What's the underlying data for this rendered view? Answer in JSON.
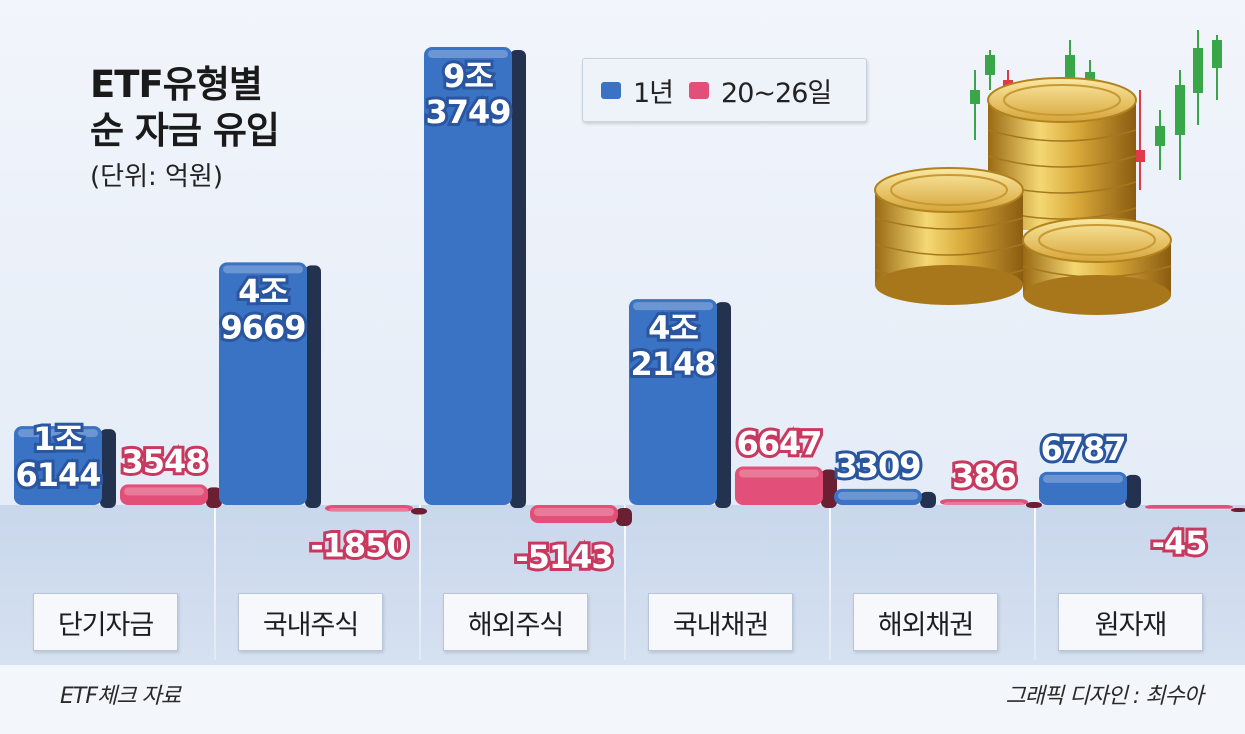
{
  "title_line1": "ETF유형별",
  "title_line2": "순 자금 유입",
  "unit": "(단위: 억원)",
  "legend": [
    {
      "label": "1년",
      "color": "#3a72c4"
    },
    {
      "label": "20~26일",
      "color": "#e24f78"
    }
  ],
  "source": "ETF체크 자료",
  "credit": "그래픽 디자인 : 최수아",
  "colors": {
    "blue": "#3a72c4",
    "pink": "#e24f78",
    "blue_label_text": "#ffffff",
    "pink_label_text": "#ffffff"
  },
  "illustration": "gold-coins-candlestick-icon",
  "chart_data": {
    "type": "bar",
    "categories": [
      "단기자금",
      "국내주식",
      "해외주식",
      "국내채권",
      "해외채권",
      "원자재"
    ],
    "series": [
      {
        "name": "1년",
        "values": [
          16144,
          49669,
          93749,
          42148,
          3309,
          6787
        ],
        "labels": [
          [
            "1조",
            "6144"
          ],
          [
            "4조",
            "9669"
          ],
          [
            "9조",
            "3749"
          ],
          [
            "4조",
            "2148"
          ],
          [
            "3309"
          ],
          [
            "6787"
          ]
        ]
      },
      {
        "name": "20~26일",
        "values": [
          3548,
          -1850,
          -5143,
          6647,
          386,
          -45
        ],
        "labels": [
          [
            "3548"
          ],
          [
            "-1850"
          ],
          [
            "-5143"
          ],
          [
            "6647"
          ],
          [
            "386"
          ],
          [
            "-45"
          ]
        ]
      }
    ],
    "title": "ETF유형별 순 자금 유입",
    "ylabel": "",
    "unit": "억원",
    "grid": false,
    "legend_position": "top-center"
  }
}
